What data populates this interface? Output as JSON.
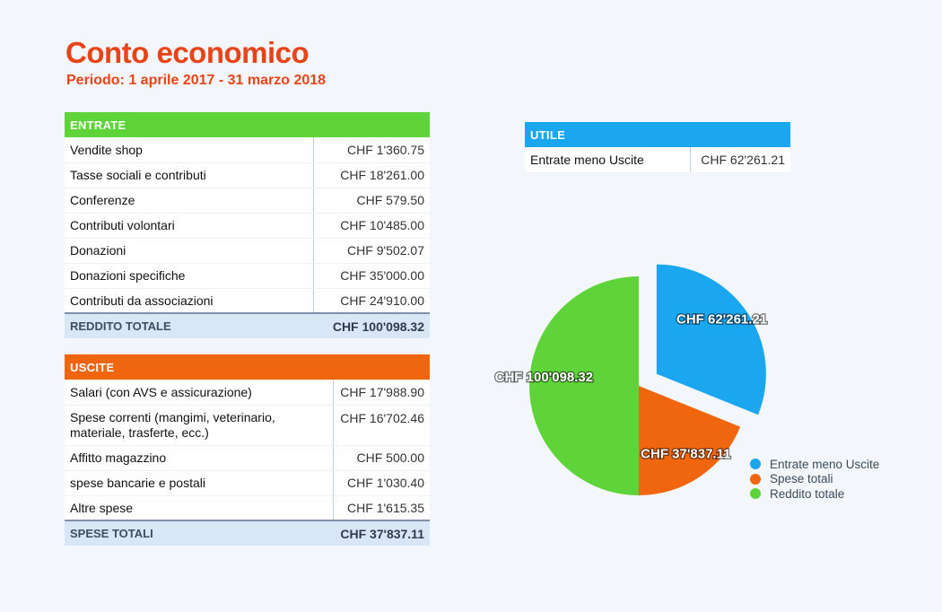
{
  "title": "Conto economico",
  "subtitle": "Periodo: 1 aprile 2017 - 31 marzo 2018",
  "colors": {
    "title": "#e8441a",
    "entrate": "#5fd43a",
    "uscite": "#f0660f",
    "utile": "#1aa7f0"
  },
  "entrate": {
    "header": "ENTRATE",
    "rows": [
      {
        "label": "Vendite shop",
        "value": "CHF 1'360.75"
      },
      {
        "label": "Tasse sociali e contributi",
        "value": "CHF 18'261.00"
      },
      {
        "label": "Conferenze",
        "value": "CHF 579.50"
      },
      {
        "label": "Contributi volontari",
        "value": "CHF 10'485.00"
      },
      {
        "label": "Donazioni",
        "value": "CHF 9'502.07"
      },
      {
        "label": "Donazioni specifiche",
        "value": "CHF 35'000.00"
      },
      {
        "label": "Contributi da associazioni",
        "value": "CHF 24'910.00"
      }
    ],
    "total_label": "REDDITO TOTALE",
    "total_value": "CHF 100'098.32"
  },
  "uscite": {
    "header": "USCITE",
    "rows": [
      {
        "label": "Salari (con AVS e assicurazione)",
        "value": "CHF 17'988.90"
      },
      {
        "label": "Spese correnti (mangimi, veterinario, materiale, trasferte, ecc.)",
        "value": "CHF 16'702.46"
      },
      {
        "label": "Affitto magazzino",
        "value": "CHF 500.00"
      },
      {
        "label": "spese bancarie e postali",
        "value": "CHF 1'030.40"
      },
      {
        "label": "Altre spese",
        "value": "CHF 1'615.35"
      }
    ],
    "total_label": "SPESE TOTALI",
    "total_value": "CHF 37'837.11"
  },
  "utile": {
    "header": "UTILE",
    "label": "Entrate meno Uscite",
    "value": "CHF 62'261.21"
  },
  "chart_data": {
    "type": "pie",
    "slices": [
      {
        "name": "Entrate meno Uscite",
        "value": 62261.21,
        "label": "CHF 62'261.21",
        "color": "#1aa7f0",
        "exploded": true
      },
      {
        "name": "Spese totali",
        "value": 37837.11,
        "label": "CHF 37'837.11",
        "color": "#f0660f",
        "exploded": false
      },
      {
        "name": "Reddito totale",
        "value": 100098.32,
        "label": "CHF 100'098.32",
        "color": "#5fd43a",
        "exploded": false
      }
    ],
    "legend_position": "bottom-right"
  }
}
